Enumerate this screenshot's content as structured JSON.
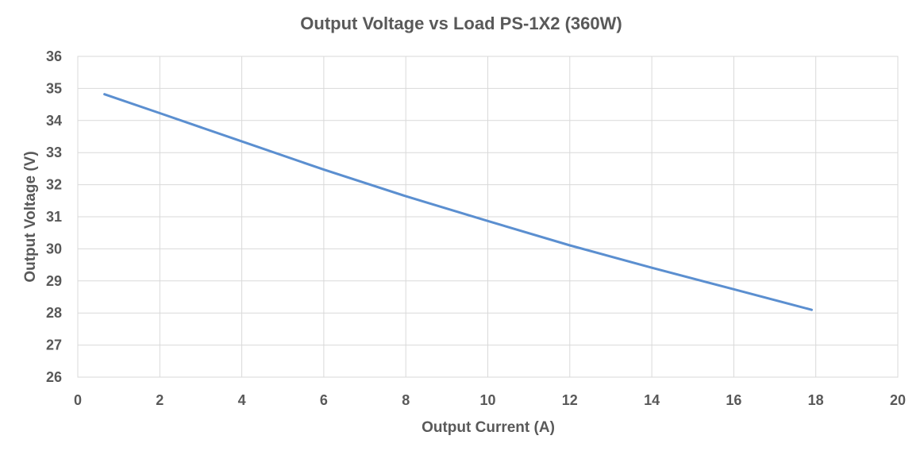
{
  "chart_data": {
    "type": "line",
    "title": "Output Voltage vs Load PS-1X2 (360W)",
    "xlabel": "Output Current (A)",
    "ylabel": "Output Voltage (V)",
    "xlim": [
      0,
      20
    ],
    "ylim": [
      26,
      36
    ],
    "x_ticks": [
      0,
      2,
      4,
      6,
      8,
      10,
      12,
      14,
      16,
      18,
      20
    ],
    "y_ticks": [
      26,
      27,
      28,
      29,
      30,
      31,
      32,
      33,
      34,
      35,
      36
    ],
    "grid": true,
    "legend": "none",
    "series": [
      {
        "color": "#5b8fd0",
        "x": [
          0.65,
          2,
          4,
          6,
          8,
          10,
          12,
          14,
          16,
          17.9
        ],
        "y": [
          34.82,
          34.23,
          33.35,
          32.47,
          31.64,
          30.87,
          30.11,
          29.41,
          28.74,
          28.1
        ]
      }
    ]
  }
}
